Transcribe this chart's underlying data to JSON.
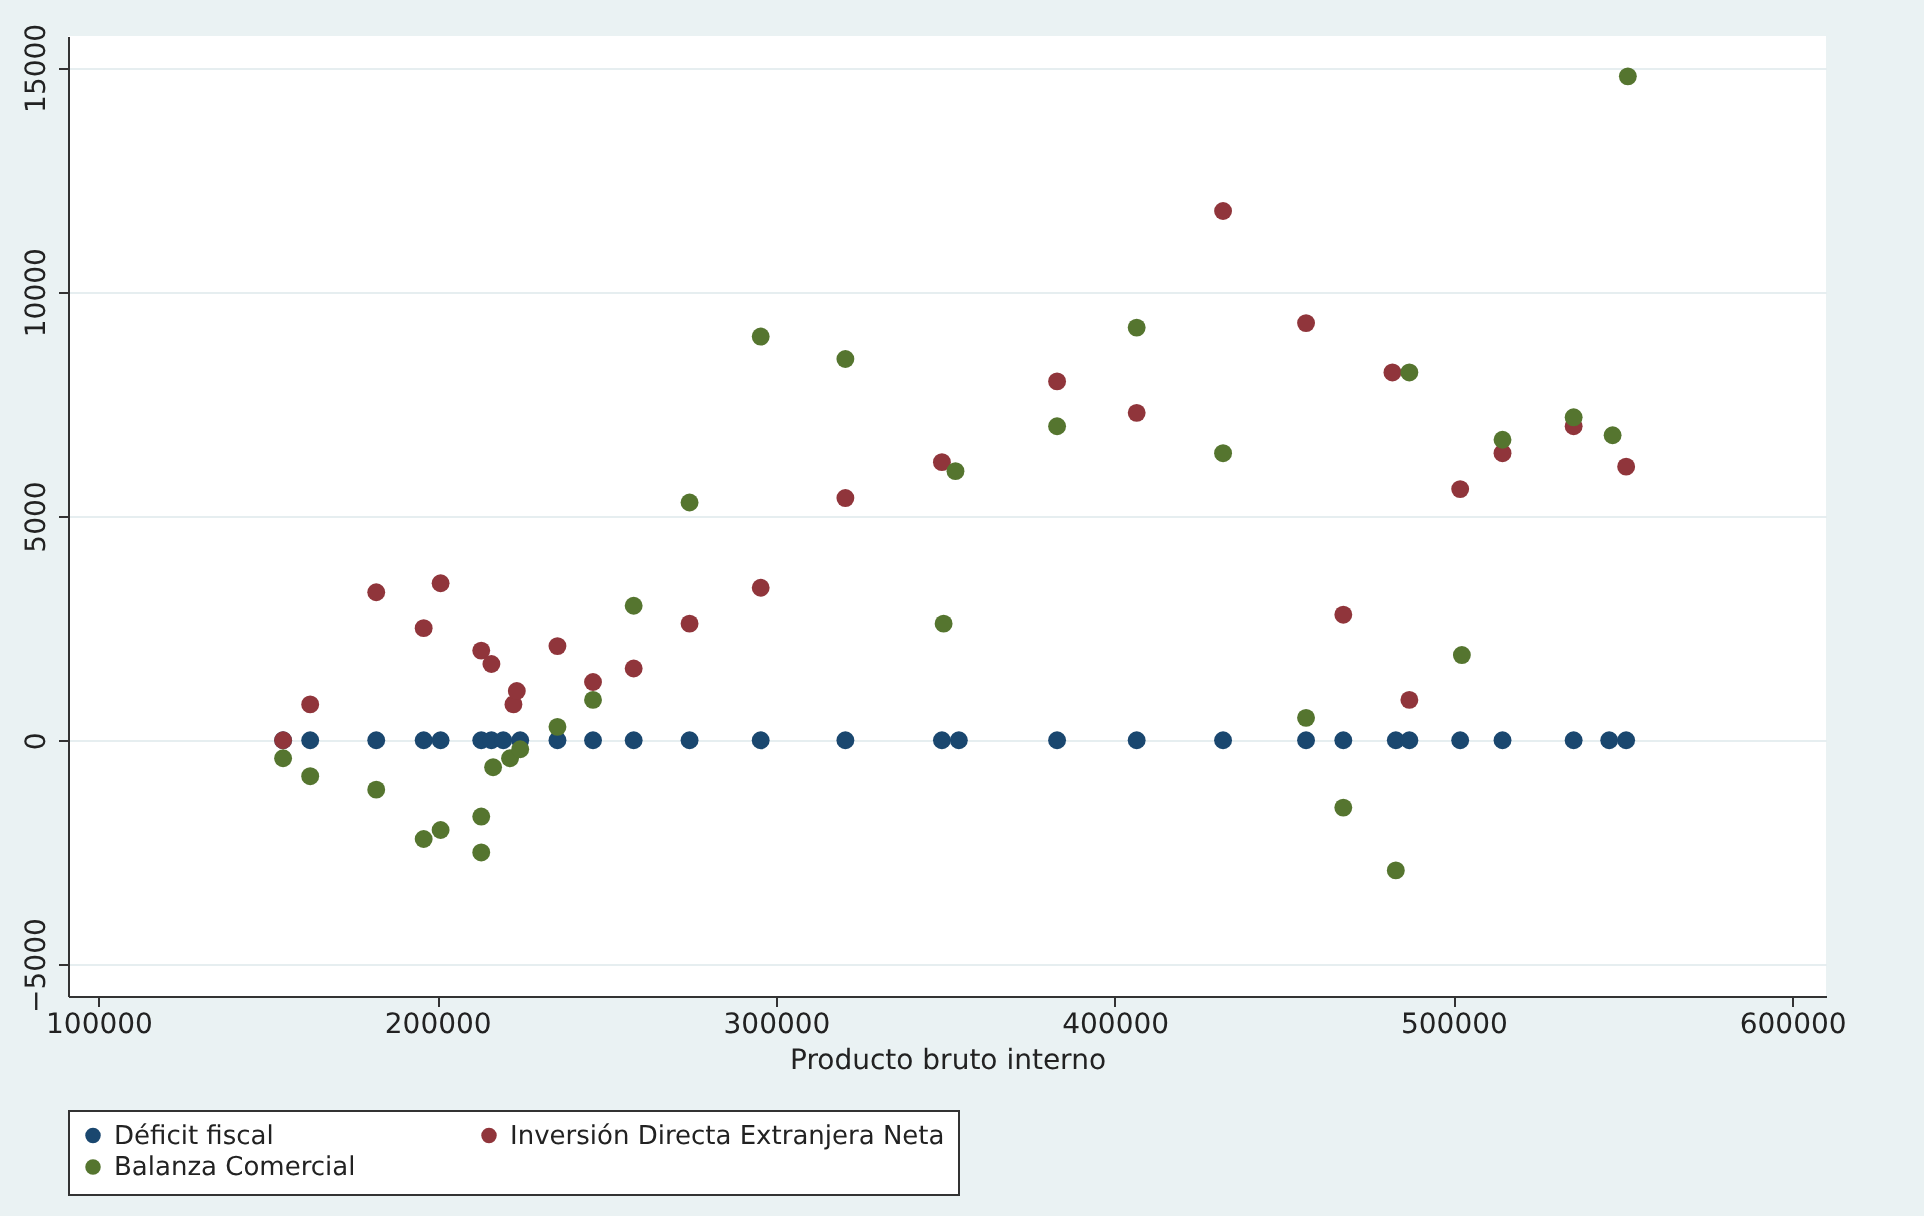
{
  "chart_data": {
    "type": "scatter",
    "xlabel": "Producto bruto interno",
    "xlim": [
      91000,
      610000
    ],
    "xticks": [
      100000,
      200000,
      300000,
      400000,
      500000,
      600000
    ],
    "ylim": [
      -5700,
      15700
    ],
    "yticks": [
      -5000,
      0,
      5000,
      10000,
      15000
    ],
    "grid": "y",
    "legend": "bottom",
    "marker": "circle",
    "series": [
      {
        "name": "Déficit fiscal",
        "color": "#1a476f",
        "x": [
          154500,
          162500,
          182000,
          196000,
          201000,
          213000,
          216000,
          219500,
          224500,
          235500,
          246000,
          258000,
          274500,
          295500,
          320500,
          349000,
          354000,
          383000,
          406500,
          432000,
          456500,
          467500,
          483000,
          487000,
          502000,
          514500,
          535500,
          546000,
          551000
        ],
        "values": [
          0,
          0,
          0,
          0,
          0,
          0,
          0,
          0,
          0,
          0,
          0,
          0,
          0,
          0,
          0,
          0,
          0,
          0,
          0,
          0,
          0,
          0,
          0,
          0,
          0,
          0,
          0,
          0,
          0
        ]
      },
      {
        "name": "Inversión Directa Extranjera Neta",
        "color": "#90353b",
        "x": [
          154500,
          162500,
          182000,
          196000,
          201000,
          213000,
          216000,
          222500,
          223500,
          235500,
          246000,
          258000,
          274500,
          295500,
          320500,
          349000,
          383000,
          406500,
          432000,
          456500,
          467500,
          482000,
          487000,
          502000,
          514500,
          535500,
          551000
        ],
        "values": [
          0,
          800,
          3300,
          2500,
          3500,
          2000,
          1700,
          800,
          1100,
          2100,
          1300,
          1600,
          2600,
          3400,
          5400,
          6200,
          8000,
          7300,
          11800,
          9300,
          2800,
          8200,
          900,
          5600,
          6400,
          7000,
          6100
        ]
      },
      {
        "name": "Balanza Comercial",
        "color": "#55752f",
        "x": [
          154500,
          162500,
          182000,
          196000,
          201000,
          213000,
          213000,
          216500,
          221500,
          224500,
          235500,
          246000,
          258000,
          274500,
          295500,
          320500,
          349500,
          353000,
          383000,
          406500,
          432000,
          456500,
          467500,
          483000,
          487000,
          502500,
          514500,
          535500,
          547000,
          551500
        ],
        "values": [
          -400,
          -800,
          -1100,
          -2200,
          -2000,
          -1700,
          -2500,
          -600,
          -400,
          -200,
          300,
          900,
          3000,
          5300,
          9000,
          8500,
          2600,
          6000,
          7000,
          9200,
          6400,
          500,
          -1500,
          -2900,
          8200,
          1900,
          6700,
          7200,
          6800,
          14800
        ]
      }
    ]
  }
}
